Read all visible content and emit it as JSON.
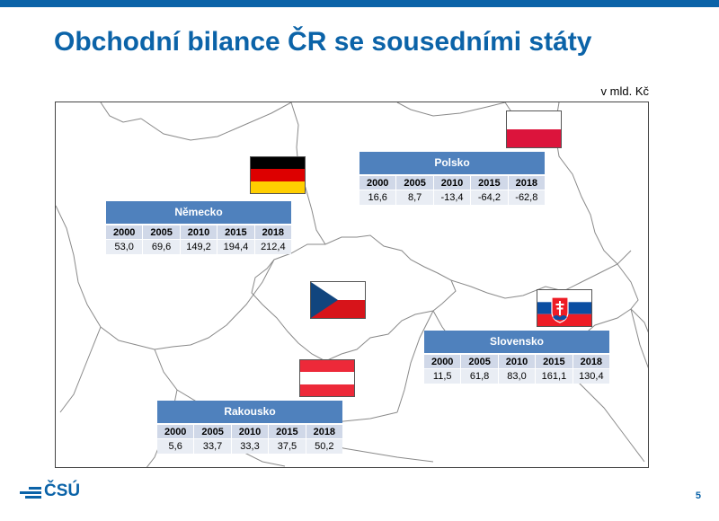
{
  "slide": {
    "title": "Obchodní bilance ČR se sousedními státy",
    "unit": "v mld. Kč",
    "page_number": "5",
    "logo_text": "ČSÚ",
    "accent_color": "#0b63a8",
    "table_header_color": "#4f81bd"
  },
  "years": [
    "2000",
    "2005",
    "2010",
    "2015",
    "2018"
  ],
  "countries": {
    "nemecko": {
      "name": "Německo",
      "values": [
        "53,0",
        "69,6",
        "149,2",
        "194,4",
        "212,4"
      ]
    },
    "polsko": {
      "name": "Polsko",
      "values": [
        "16,6",
        "8,7",
        "-13,4",
        "-64,2",
        "-62,8"
      ]
    },
    "slovensko": {
      "name": "Slovensko",
      "values": [
        "11,5",
        "61,8",
        "83,0",
        "161,1",
        "130,4"
      ]
    },
    "rakousko": {
      "name": "Rakousko",
      "values": [
        "5,6",
        "33,7",
        "33,3",
        "37,5",
        "50,2"
      ]
    }
  }
}
